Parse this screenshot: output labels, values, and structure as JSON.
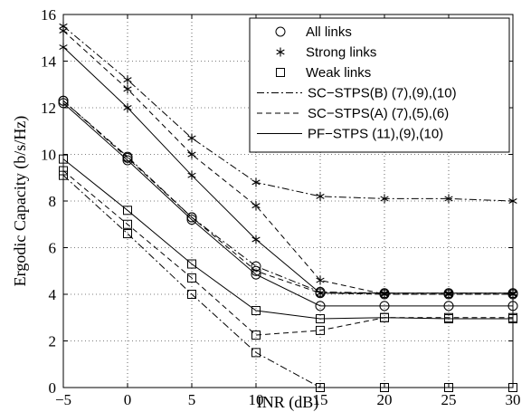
{
  "chart_data": {
    "type": "line",
    "xlabel": "INR (dB)",
    "ylabel": "Ergodic Capacity (b/s/Hz)",
    "xlim": [
      -5,
      30
    ],
    "ylim": [
      0,
      16
    ],
    "xticks": [
      -5,
      0,
      5,
      10,
      15,
      20,
      25,
      30
    ],
    "yticks": [
      0,
      2,
      4,
      6,
      8,
      10,
      12,
      14,
      16
    ],
    "grid": true,
    "legend_position": "top-right",
    "x": [
      -5,
      0,
      5,
      10,
      15,
      20,
      25,
      30
    ],
    "legend": {
      "markers": [
        {
          "marker": "circle",
          "label": "All links"
        },
        {
          "marker": "star",
          "label": "Strong links"
        },
        {
          "marker": "square",
          "label": "Weak links"
        }
      ],
      "lines": [
        {
          "style": "dashdot",
          "label": "SC−STPS(B) (7),(9),(10)"
        },
        {
          "style": "dashed",
          "label": "SC−STPS(A) (7),(5),(6)"
        },
        {
          "style": "solid",
          "label": "PF−STPS (11),(9),(10)"
        }
      ]
    },
    "series": [
      {
        "scheme": "SC-STPS(B)",
        "links": "All links",
        "line": "dashdot",
        "marker": "circle",
        "values": [
          12.3,
          9.9,
          7.3,
          5.2,
          4.1,
          4.05,
          4.05,
          4.05
        ]
      },
      {
        "scheme": "SC-STPS(B)",
        "links": "Strong links",
        "line": "dashdot",
        "marker": "star",
        "values": [
          15.5,
          13.2,
          10.7,
          8.8,
          8.2,
          8.1,
          8.1,
          8.0
        ]
      },
      {
        "scheme": "SC-STPS(B)",
        "links": "Weak links",
        "line": "dashdot",
        "marker": "square",
        "values": [
          9.1,
          6.6,
          4.0,
          1.5,
          0.0,
          0.0,
          0.0,
          0.0
        ]
      },
      {
        "scheme": "SC-STPS(A)",
        "links": "All links",
        "line": "dashed",
        "marker": "circle",
        "values": [
          12.3,
          9.85,
          7.3,
          5.0,
          4.05,
          4.0,
          4.0,
          4.0
        ]
      },
      {
        "scheme": "SC-STPS(A)",
        "links": "Strong links",
        "line": "dashed",
        "marker": "star",
        "values": [
          15.3,
          12.8,
          10.0,
          7.8,
          4.6,
          4.0,
          4.0,
          4.0
        ]
      },
      {
        "scheme": "SC-STPS(A)",
        "links": "Weak links",
        "line": "dashed",
        "marker": "square",
        "values": [
          9.3,
          7.0,
          4.7,
          2.25,
          2.45,
          3.0,
          3.0,
          3.0
        ]
      },
      {
        "scheme": "PF-STPS",
        "links": "All links",
        "line": "solid",
        "marker": "circle",
        "values": [
          12.2,
          9.75,
          7.2,
          4.85,
          3.5,
          3.5,
          3.5,
          3.5
        ]
      },
      {
        "scheme": "PF-STPS",
        "links": "Strong links",
        "line": "solid",
        "marker": "star",
        "values": [
          14.6,
          12.0,
          9.1,
          6.35,
          4.05,
          4.05,
          4.05,
          4.05
        ]
      },
      {
        "scheme": "PF-STPS",
        "links": "Weak links",
        "line": "solid",
        "marker": "square",
        "values": [
          9.8,
          7.6,
          5.3,
          3.3,
          2.95,
          3.0,
          2.95,
          2.95
        ]
      }
    ]
  }
}
